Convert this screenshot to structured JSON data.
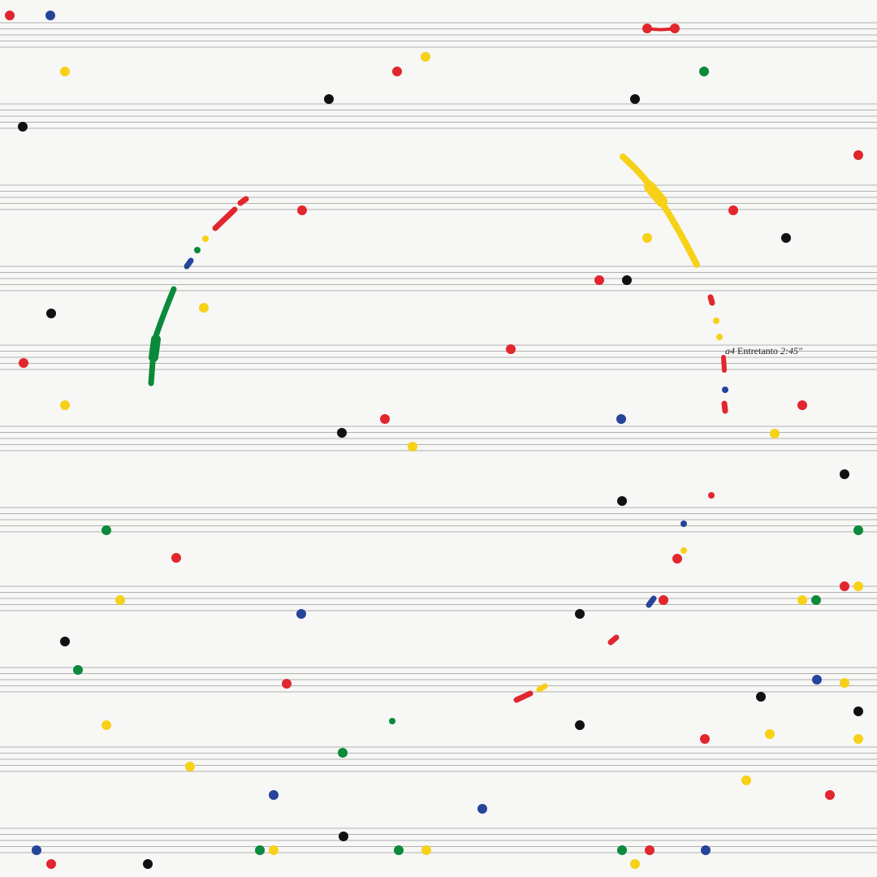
{
  "score": {
    "annotation": {
      "voice": "a4",
      "label": "Entretanto",
      "duration": "2:45\""
    },
    "colors": {
      "red": "#e1262d",
      "blue": "#25449a",
      "yellow": "#f7d117",
      "green": "#0a8a3a",
      "black": "#111111",
      "staff_line": "#9a9a9a",
      "paper": "#f7f7f6"
    }
  }
}
